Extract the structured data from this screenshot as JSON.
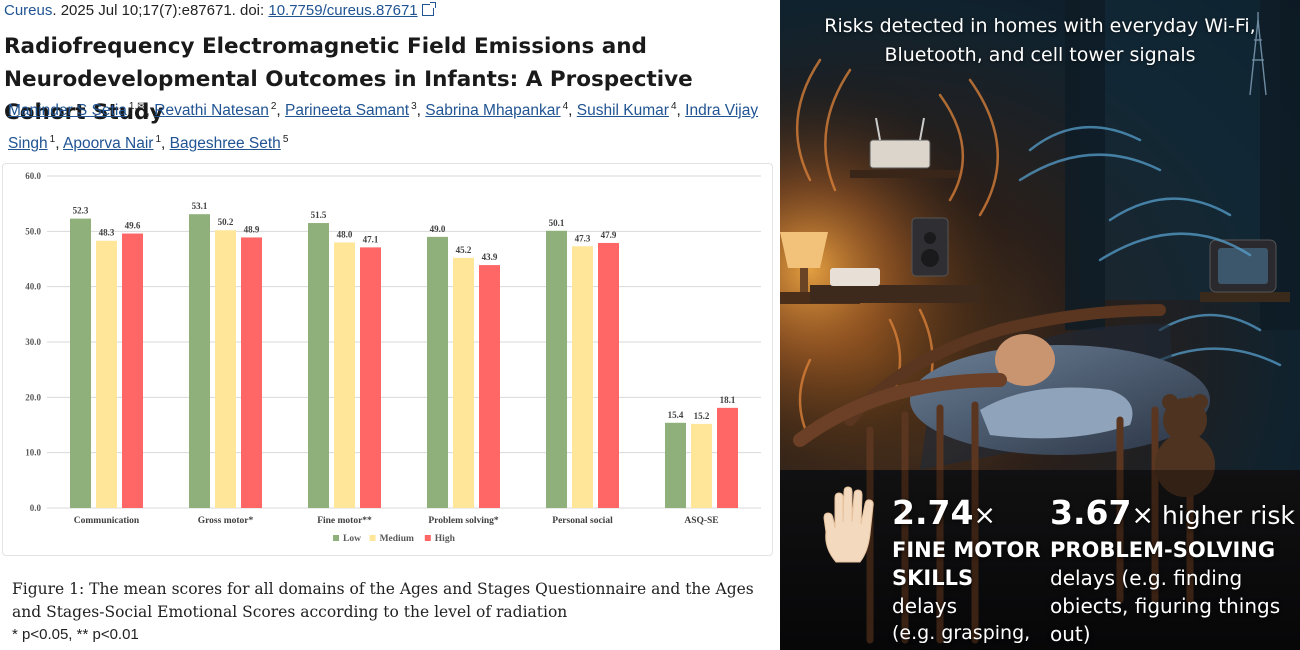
{
  "paper": {
    "journal": "Cureus",
    "citation_rest": ". 2025 Jul 10;17(7):e87671. doi: ",
    "doi": "10.7759/cureus.87671",
    "title": "Radiofrequency Electromagnetic Field Emissions and Neurodevelopmental Outcomes in Infants: A Prospective Cohort Study",
    "authors": [
      {
        "name": "Maninder S Setia",
        "sup": "1,✉"
      },
      {
        "name": "Revathi Natesan",
        "sup": "2"
      },
      {
        "name": "Parineeta Samant",
        "sup": "3"
      },
      {
        "name": "Sabrina Mhapankar",
        "sup": "4"
      },
      {
        "name": "Sushil Kumar",
        "sup": "4"
      },
      {
        "name": "Indra Vijay Singh",
        "sup": "1"
      },
      {
        "name": "Apoorva Nair",
        "sup": "1"
      },
      {
        "name": "Bageshree Seth",
        "sup": "5"
      }
    ],
    "caption": "Figure 1: The mean scores for all domains of the Ages and Stages Questionnaire and the Ages and Stages-Social Emotional Scores according to the level of radiation",
    "footnote": "* p<0.05, ** p<0.01"
  },
  "chart_data": {
    "type": "bar",
    "categories": [
      "Communication",
      "Gross motor*",
      "Fine motor**",
      "Problem solving*",
      "Personal social",
      "ASQ-SE"
    ],
    "series": [
      {
        "name": "Low",
        "color": "#8fb07a",
        "values": [
          52.3,
          53.1,
          51.5,
          49.0,
          50.1,
          15.4
        ]
      },
      {
        "name": "Medium",
        "color": "#ffe699",
        "values": [
          48.3,
          50.2,
          48.0,
          45.2,
          47.3,
          15.2
        ]
      },
      {
        "name": "High",
        "color": "#ff6666",
        "values": [
          49.6,
          48.9,
          47.1,
          43.9,
          47.9,
          18.1
        ]
      }
    ],
    "ylim": [
      0,
      60
    ],
    "yticks": [
      "0.0",
      "10.0",
      "20.0",
      "30.0",
      "40.0",
      "50.0",
      "60.0"
    ],
    "xlabel": "",
    "ylabel": "",
    "grid": true,
    "legend": "bottom"
  },
  "infographic": {
    "headline": "Risks detected in homes with everyday Wi-Fi, Bluetooth, and cell tower signals",
    "icon": "raised-hand-icon",
    "stat1": {
      "value": "2.74",
      "mult": "×",
      "label_bold": "FINE MOTOR SKILLS",
      "label_rest": " delays",
      "example": "(e.g. grasping, stacking)"
    },
    "stat2": {
      "value": "3.67",
      "mult": "×",
      "suffix": " higher risk",
      "label_bold": "PROBLEM-SOLVING",
      "label_rest": "delays (e.g. finding obiects, figuring things out)"
    }
  }
}
